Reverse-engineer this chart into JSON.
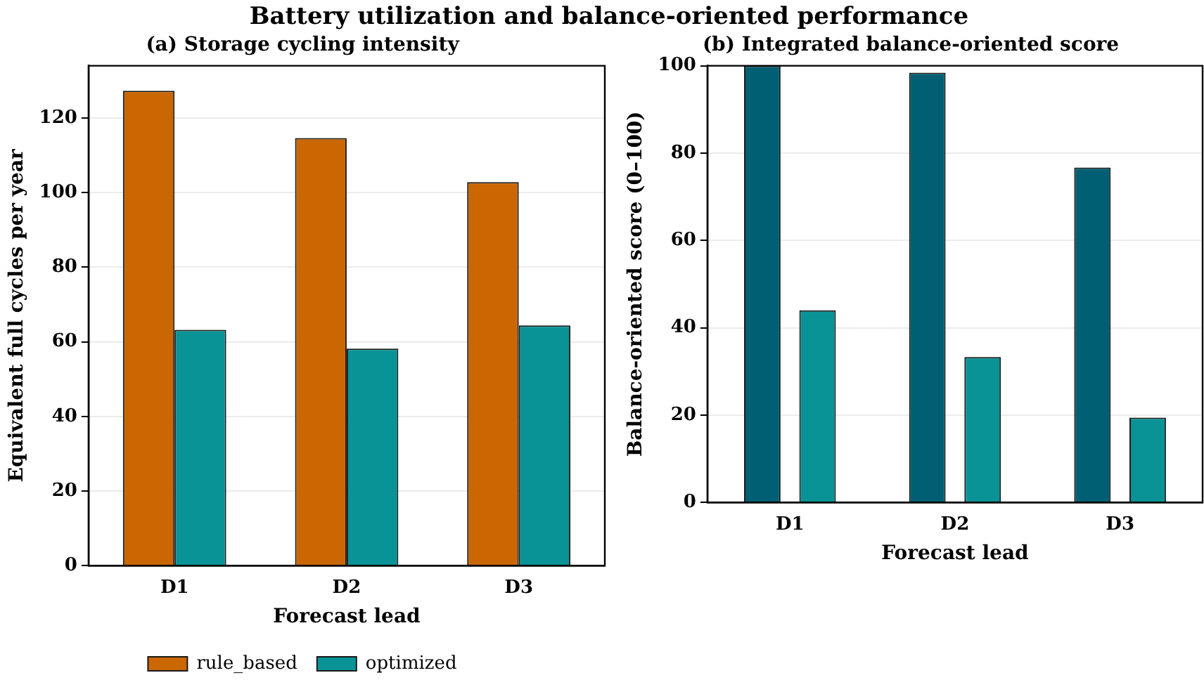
{
  "chart_data": [
    {
      "type": "bar",
      "title": "(a) Storage cycling intensity",
      "xlabel": "Forecast lead",
      "ylabel": "Equivalent full cycles per year",
      "categories": [
        "D1",
        "D2",
        "D3"
      ],
      "series": [
        {
          "name": "rule_based",
          "color": "#ca6702",
          "values": [
            127.3,
            114.6,
            102.8
          ]
        },
        {
          "name": "optimized",
          "color": "#0a9396",
          "values": [
            63.2,
            58.2,
            64.4
          ]
        }
      ],
      "ylim": [
        0,
        134
      ],
      "yticks": [
        0,
        20,
        40,
        60,
        80,
        100,
        120
      ],
      "grid": "y",
      "legend": "bottom",
      "annotations": [
        "Battery utilization and balance-oriented performance"
      ]
    },
    {
      "type": "bar",
      "title": "(b) Integrated balance-oriented score",
      "xlabel": "Forecast lead",
      "ylabel": "Balance-oriented score (0–100)",
      "categories": [
        "D1",
        "D2",
        "D3"
      ],
      "series": [
        {
          "color": "#005f73",
          "values": [
            100,
            98.4,
            76.7
          ]
        },
        {
          "color": "#0a9396",
          "values": [
            44.0,
            33.3,
            19.4
          ]
        }
      ],
      "ylim": [
        0,
        100
      ],
      "yticks": [
        0,
        20,
        40,
        60,
        80,
        100
      ],
      "grid": "y"
    }
  ]
}
